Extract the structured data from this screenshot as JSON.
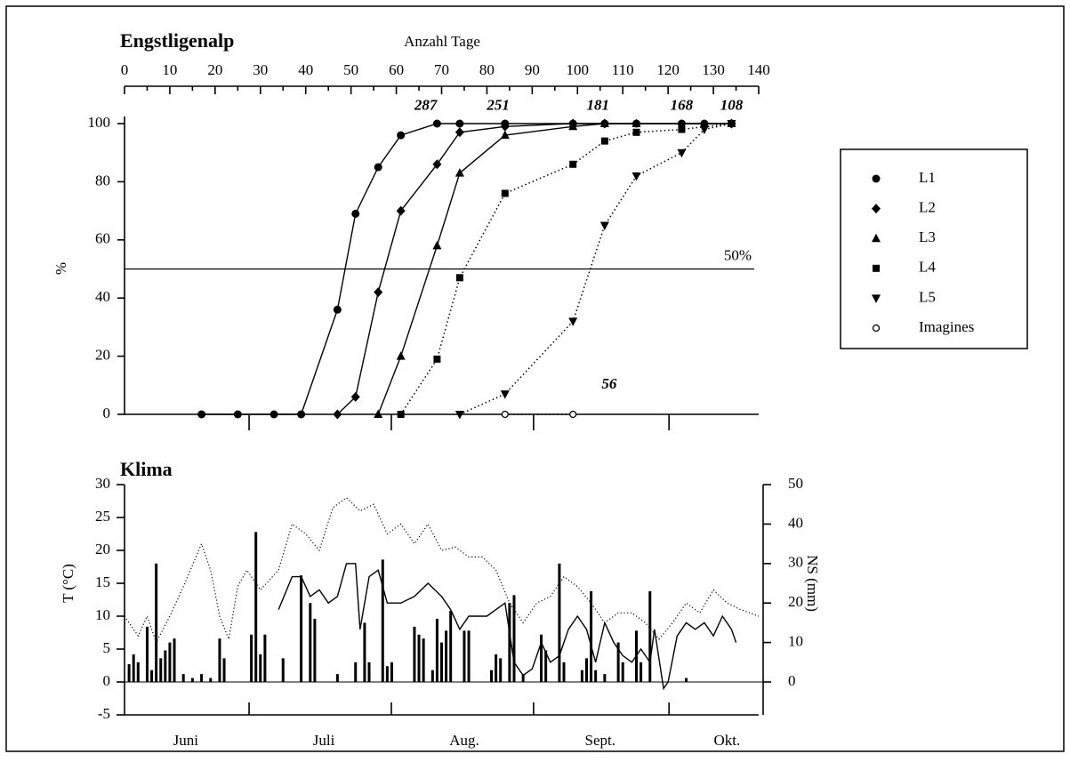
{
  "chart_data": [
    {
      "type": "line",
      "title": "Engstligenalp",
      "xlabel": "Anzahl Tage",
      "ylabel": "%",
      "xlim": [
        0,
        140
      ],
      "xticks": [
        0,
        10,
        20,
        30,
        40,
        50,
        60,
        70,
        80,
        90,
        100,
        110,
        120,
        130,
        140
      ],
      "ylim": [
        0,
        100
      ],
      "yticks": [
        0,
        20,
        40,
        60,
        80,
        100
      ],
      "month_ticks": [
        27.5,
        58.9,
        90.3,
        120.2
      ],
      "reference_line": {
        "value": 50,
        "label": "50%"
      },
      "legend": "right",
      "series": [
        {
          "name": "L1",
          "marker": "circle",
          "style": "solid",
          "color": "#000000",
          "x": [
            17,
            25,
            33,
            39,
            47,
            51,
            56,
            61,
            69,
            74,
            84,
            99,
            106,
            113,
            123,
            128,
            134
          ],
          "values": [
            0,
            0,
            0,
            0,
            36,
            69,
            85,
            96,
            100,
            100,
            100,
            100,
            100,
            100,
            100,
            100,
            100
          ]
        },
        {
          "name": "L2",
          "marker": "diamond",
          "style": "solid",
          "color": "#000000",
          "x": [
            47,
            51,
            56,
            61,
            69,
            74,
            84,
            99,
            106,
            134
          ],
          "values": [
            0,
            6,
            42,
            70,
            86,
            97,
            99,
            100,
            100,
            100
          ]
        },
        {
          "name": "L3",
          "marker": "triangle",
          "style": "solid",
          "color": "#000000",
          "x": [
            56,
            61,
            69,
            74,
            84,
            99,
            106,
            113,
            134
          ],
          "values": [
            0,
            20,
            58,
            83,
            96,
            99,
            100,
            100,
            100
          ]
        },
        {
          "name": "L4",
          "marker": "square",
          "style": "dotted",
          "color": "#000000",
          "x": [
            61,
            69,
            74,
            84,
            99,
            106,
            113,
            123,
            134
          ],
          "values": [
            0,
            19,
            47,
            76,
            86,
            94,
            97,
            98,
            100
          ]
        },
        {
          "name": "L5",
          "marker": "triangle-down",
          "style": "dotted",
          "color": "#000000",
          "x": [
            74,
            84,
            99,
            106,
            113,
            123,
            128,
            134
          ],
          "values": [
            0,
            7,
            32,
            65,
            82,
            90,
            98,
            100
          ]
        },
        {
          "name": "Imagines",
          "marker": "open-circle",
          "style": "dotted",
          "color": "#000000",
          "x": [
            84,
            99
          ],
          "values": [
            0,
            0
          ]
        }
      ],
      "annotations": [
        {
          "text": "287",
          "x": 66.5,
          "y": 106
        },
        {
          "text": "251",
          "x": 82.5,
          "y": 106
        },
        {
          "text": "181",
          "x": 104.5,
          "y": 106
        },
        {
          "text": "168",
          "x": 123,
          "y": 106
        },
        {
          "text": "108",
          "x": 134,
          "y": 106
        },
        {
          "text": "56",
          "x": 107,
          "y": 10
        }
      ]
    },
    {
      "type": "combo",
      "title": "Klima",
      "ylabel": "T (°C)",
      "y2label": "NS (mm)",
      "xlim": [
        0,
        140
      ],
      "month_ticks": [
        27.5,
        58.9,
        90.3,
        120.2
      ],
      "months": [
        {
          "value": 13.5,
          "label": "Juni"
        },
        {
          "value": 44,
          "label": "Juli"
        },
        {
          "value": 75,
          "label": "Aug."
        },
        {
          "value": 105,
          "label": "Sept."
        },
        {
          "value": 133,
          "label": "Okt."
        }
      ],
      "ylim": [
        -5,
        30
      ],
      "yticks": [
        -5,
        0,
        5,
        10,
        15,
        20,
        25,
        30
      ],
      "y2lim": [
        0,
        50
      ],
      "y2ticks": [
        0,
        10,
        20,
        30,
        40,
        50
      ],
      "series": [
        {
          "kind": "line",
          "style": "dotted",
          "color": "#000000",
          "x": [
            0,
            3,
            5,
            7,
            10,
            13,
            17,
            19,
            21,
            23,
            25,
            27,
            30,
            34,
            37,
            40,
            43,
            46,
            49,
            52,
            55,
            58,
            61,
            64,
            67,
            70,
            73,
            76,
            79,
            82,
            85,
            88,
            91,
            94,
            97,
            100,
            103,
            106,
            109,
            112,
            115,
            118,
            121,
            124,
            127,
            130,
            133,
            136,
            140
          ],
          "values": [
            10,
            7,
            10,
            6,
            10,
            14.5,
            21,
            17,
            10,
            6.5,
            14.5,
            17,
            14,
            17,
            24,
            22.5,
            20,
            26.5,
            28,
            26,
            27,
            22.5,
            24,
            21,
            24,
            20,
            20.5,
            19,
            19,
            17,
            12,
            9,
            12,
            13,
            16,
            14.5,
            12,
            9,
            10.5,
            10.5,
            9,
            6.5,
            9,
            12,
            10.5,
            14,
            12,
            11,
            10
          ]
        },
        {
          "kind": "line",
          "style": "solid",
          "color": "#000000",
          "x": [
            34,
            37,
            39,
            41,
            43,
            45,
            47,
            49,
            51,
            52,
            54,
            56,
            58,
            61,
            64,
            67,
            70,
            72,
            74,
            76,
            78,
            80,
            82,
            84,
            86,
            88,
            90,
            92,
            94,
            96,
            98,
            100,
            102,
            104,
            106,
            108,
            110,
            112,
            114,
            116,
            117,
            119,
            120,
            122,
            124,
            126,
            128,
            130,
            132,
            134,
            135
          ],
          "values": [
            11,
            16,
            16,
            13,
            14,
            12,
            13,
            18,
            18,
            8,
            16,
            17,
            12,
            12,
            13,
            15,
            13,
            11,
            8,
            10,
            10,
            10,
            11,
            12,
            3,
            1,
            2,
            6,
            3,
            4,
            8,
            10,
            8,
            3,
            9,
            6,
            4,
            3,
            5,
            3,
            8,
            -1,
            0,
            7,
            9,
            8,
            9,
            7,
            10,
            8,
            6
          ]
        },
        {
          "kind": "bar",
          "axis": "y2",
          "color": "#000000",
          "x": [
            1,
            2,
            3,
            5,
            6,
            7,
            8,
            9,
            10,
            11,
            13,
            15,
            17,
            19,
            21,
            22,
            28,
            29,
            30,
            31,
            35,
            39,
            41,
            42,
            47,
            51,
            53,
            54,
            57,
            58,
            59,
            64,
            65,
            66,
            68,
            69,
            70,
            71,
            72,
            75,
            76,
            81,
            82,
            83,
            85,
            86,
            88,
            92,
            93,
            96,
            97,
            101,
            102,
            103,
            104,
            106,
            109,
            110,
            113,
            114,
            116,
            124
          ],
          "values": [
            4.5,
            7,
            5,
            14,
            3,
            30,
            6,
            8,
            10,
            11,
            2,
            1,
            2,
            1,
            11,
            6,
            12,
            38,
            7,
            12,
            6,
            27,
            20,
            16,
            2,
            5,
            15,
            5,
            31,
            4,
            5,
            14,
            12,
            11,
            3,
            16,
            10,
            13,
            18,
            13,
            13,
            3,
            7,
            6,
            20,
            22,
            2,
            12,
            8,
            30,
            5,
            3,
            6,
            23,
            3,
            2,
            10,
            5,
            13,
            5,
            23,
            1
          ]
        }
      ]
    }
  ]
}
